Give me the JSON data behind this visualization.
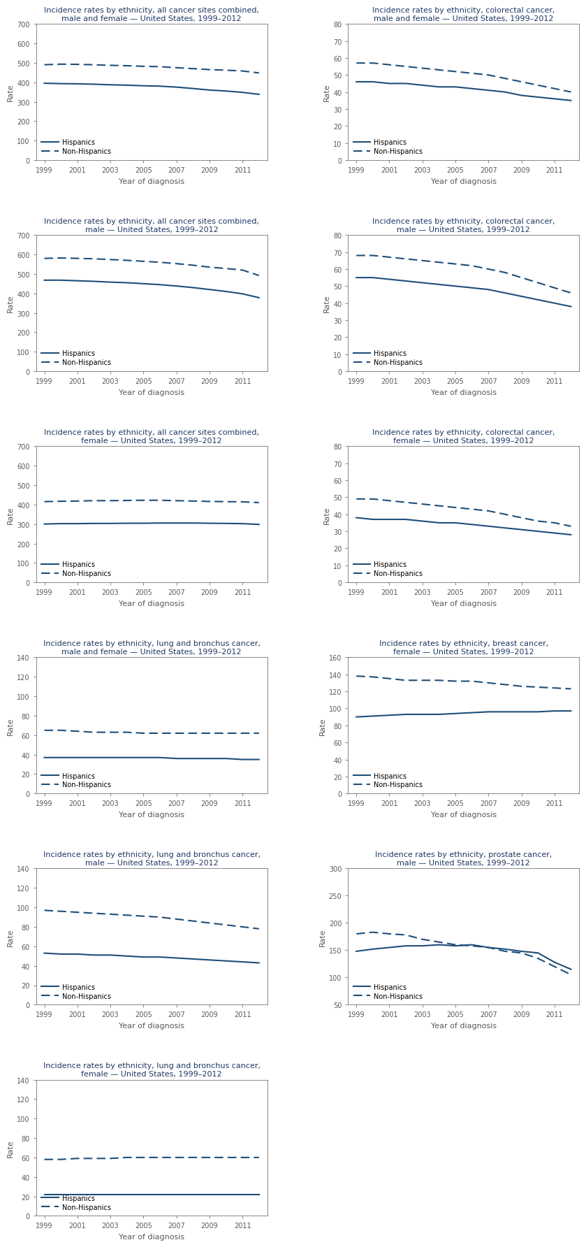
{
  "years": [
    1999,
    2000,
    2001,
    2002,
    2003,
    2004,
    2005,
    2006,
    2007,
    2008,
    2009,
    2010,
    2011,
    2012
  ],
  "line_color": "#1f4e79",
  "line_color_solid": "#2e75b6",
  "plots": [
    {
      "title": "Incidence rates by ethnicity, all cancer sites combined,\nmale and female — United States, 1999–2012",
      "ylim": [
        0,
        700
      ],
      "yticks": [
        0,
        100,
        200,
        300,
        400,
        500,
        600,
        700
      ],
      "hispanic": [
        395,
        393,
        392,
        390,
        387,
        385,
        382,
        380,
        375,
        368,
        360,
        355,
        348,
        338
      ],
      "non_hispanic": [
        490,
        493,
        492,
        490,
        487,
        485,
        482,
        480,
        475,
        470,
        465,
        462,
        458,
        448
      ]
    },
    {
      "title": "Incidence rates by ethnicity, colorectal cancer,\nmale and female — United States, 1999–2012",
      "ylim": [
        0,
        80
      ],
      "yticks": [
        0,
        10,
        20,
        30,
        40,
        50,
        60,
        70,
        80
      ],
      "hispanic": [
        46,
        46,
        45,
        45,
        44,
        43,
        43,
        42,
        41,
        40,
        38,
        37,
        36,
        35
      ],
      "non_hispanic": [
        57,
        57,
        56,
        55,
        54,
        53,
        52,
        51,
        50,
        48,
        46,
        44,
        42,
        40
      ]
    },
    {
      "title": "Incidence rates by ethnicity, all cancer sites combined,\nmale — United States, 1999–2012",
      "ylim": [
        0,
        700
      ],
      "yticks": [
        0,
        100,
        200,
        300,
        400,
        500,
        600,
        700
      ],
      "hispanic": [
        468,
        468,
        465,
        462,
        458,
        455,
        450,
        445,
        438,
        430,
        420,
        410,
        398,
        378
      ],
      "non_hispanic": [
        580,
        582,
        580,
        578,
        574,
        570,
        565,
        560,
        553,
        545,
        535,
        528,
        520,
        492
      ]
    },
    {
      "title": "Incidence rates by ethnicity, colorectal cancer,\nmale — United States, 1999–2012",
      "ylim": [
        0,
        80
      ],
      "yticks": [
        0,
        10,
        20,
        30,
        40,
        50,
        60,
        70,
        80
      ],
      "hispanic": [
        55,
        55,
        54,
        53,
        52,
        51,
        50,
        49,
        48,
        46,
        44,
        42,
        40,
        38
      ],
      "non_hispanic": [
        68,
        68,
        67,
        66,
        65,
        64,
        63,
        62,
        60,
        58,
        55,
        52,
        49,
        46
      ]
    },
    {
      "title": "Incidence rates by ethnicity, all cancer sites combined,\nfemale — United States, 1999–2012",
      "ylim": [
        0,
        700
      ],
      "yticks": [
        0,
        100,
        200,
        300,
        400,
        500,
        600,
        700
      ],
      "hispanic": [
        300,
        302,
        302,
        303,
        303,
        304,
        304,
        305,
        305,
        305,
        304,
        303,
        302,
        298
      ],
      "non_hispanic": [
        415,
        417,
        418,
        420,
        420,
        421,
        422,
        422,
        420,
        418,
        416,
        415,
        414,
        410
      ]
    },
    {
      "title": "Incidence rates by ethnicity, colorectal cancer,\nfemale — United States, 1999–2012",
      "ylim": [
        0,
        80
      ],
      "yticks": [
        0,
        10,
        20,
        30,
        40,
        50,
        60,
        70,
        80
      ],
      "hispanic": [
        38,
        37,
        37,
        37,
        36,
        35,
        35,
        34,
        33,
        32,
        31,
        30,
        29,
        28
      ],
      "non_hispanic": [
        49,
        49,
        48,
        47,
        46,
        45,
        44,
        43,
        42,
        40,
        38,
        36,
        35,
        33
      ]
    },
    {
      "title": "Incidence rates by ethnicity, lung and bronchus cancer,\nmale and female — United States, 1999–2012",
      "ylim": [
        0,
        140
      ],
      "yticks": [
        0,
        20,
        40,
        60,
        80,
        100,
        120,
        140
      ],
      "hispanic": [
        37,
        37,
        37,
        37,
        37,
        37,
        37,
        37,
        36,
        36,
        36,
        36,
        35,
        35
      ],
      "non_hispanic": [
        65,
        65,
        64,
        63,
        63,
        63,
        62,
        62,
        62,
        62,
        62,
        62,
        62,
        62
      ]
    },
    {
      "title": "Incidence rates by ethnicity, breast cancer,\nfemale — United States, 1999–2012",
      "ylim": [
        0,
        160
      ],
      "yticks": [
        0,
        20,
        40,
        60,
        80,
        100,
        120,
        140,
        160
      ],
      "hispanic": [
        90,
        91,
        92,
        93,
        93,
        93,
        94,
        95,
        96,
        96,
        96,
        96,
        97,
        97
      ],
      "non_hispanic": [
        138,
        137,
        135,
        133,
        133,
        133,
        132,
        132,
        130,
        128,
        126,
        125,
        124,
        123
      ]
    },
    {
      "title": "Incidence rates by ethnicity, lung and bronchus cancer,\nmale — United States, 1999–2012",
      "ylim": [
        0,
        140
      ],
      "yticks": [
        0,
        20,
        40,
        60,
        80,
        100,
        120,
        140
      ],
      "hispanic": [
        53,
        52,
        52,
        51,
        51,
        50,
        49,
        49,
        48,
        47,
        46,
        45,
        44,
        43
      ],
      "non_hispanic": [
        97,
        96,
        95,
        94,
        93,
        92,
        91,
        90,
        88,
        86,
        84,
        82,
        80,
        78
      ]
    },
    {
      "title": "Incidence rates by ethnicity, prostate cancer,\nmale — United States, 1999–2012",
      "ylim": [
        50,
        300
      ],
      "yticks": [
        50,
        100,
        150,
        200,
        250,
        300
      ],
      "hispanic": [
        148,
        152,
        155,
        158,
        158,
        160,
        158,
        160,
        155,
        152,
        148,
        145,
        128,
        115
      ],
      "non_hispanic": [
        180,
        183,
        180,
        178,
        170,
        165,
        160,
        158,
        155,
        148,
        145,
        135,
        120,
        105
      ]
    },
    {
      "title": "Incidence rates by ethnicity, lung and bronchus cancer,\nfemale — United States, 1999–2012",
      "ylim": [
        0,
        140
      ],
      "yticks": [
        0,
        20,
        40,
        60,
        80,
        100,
        120,
        140
      ],
      "hispanic": [
        22,
        22,
        22,
        22,
        22,
        22,
        22,
        22,
        22,
        22,
        22,
        22,
        22,
        22
      ],
      "non_hispanic": [
        58,
        58,
        59,
        59,
        59,
        60,
        60,
        60,
        60,
        60,
        60,
        60,
        60,
        60
      ]
    }
  ],
  "xlabel": "Year of diagnosis",
  "ylabel": "Rate",
  "legend_solid": "Hispanics",
  "legend_dashed": "Non-Hispanics",
  "title_color": "#1f3864",
  "axis_color": "#595959",
  "background_color": "#ffffff"
}
